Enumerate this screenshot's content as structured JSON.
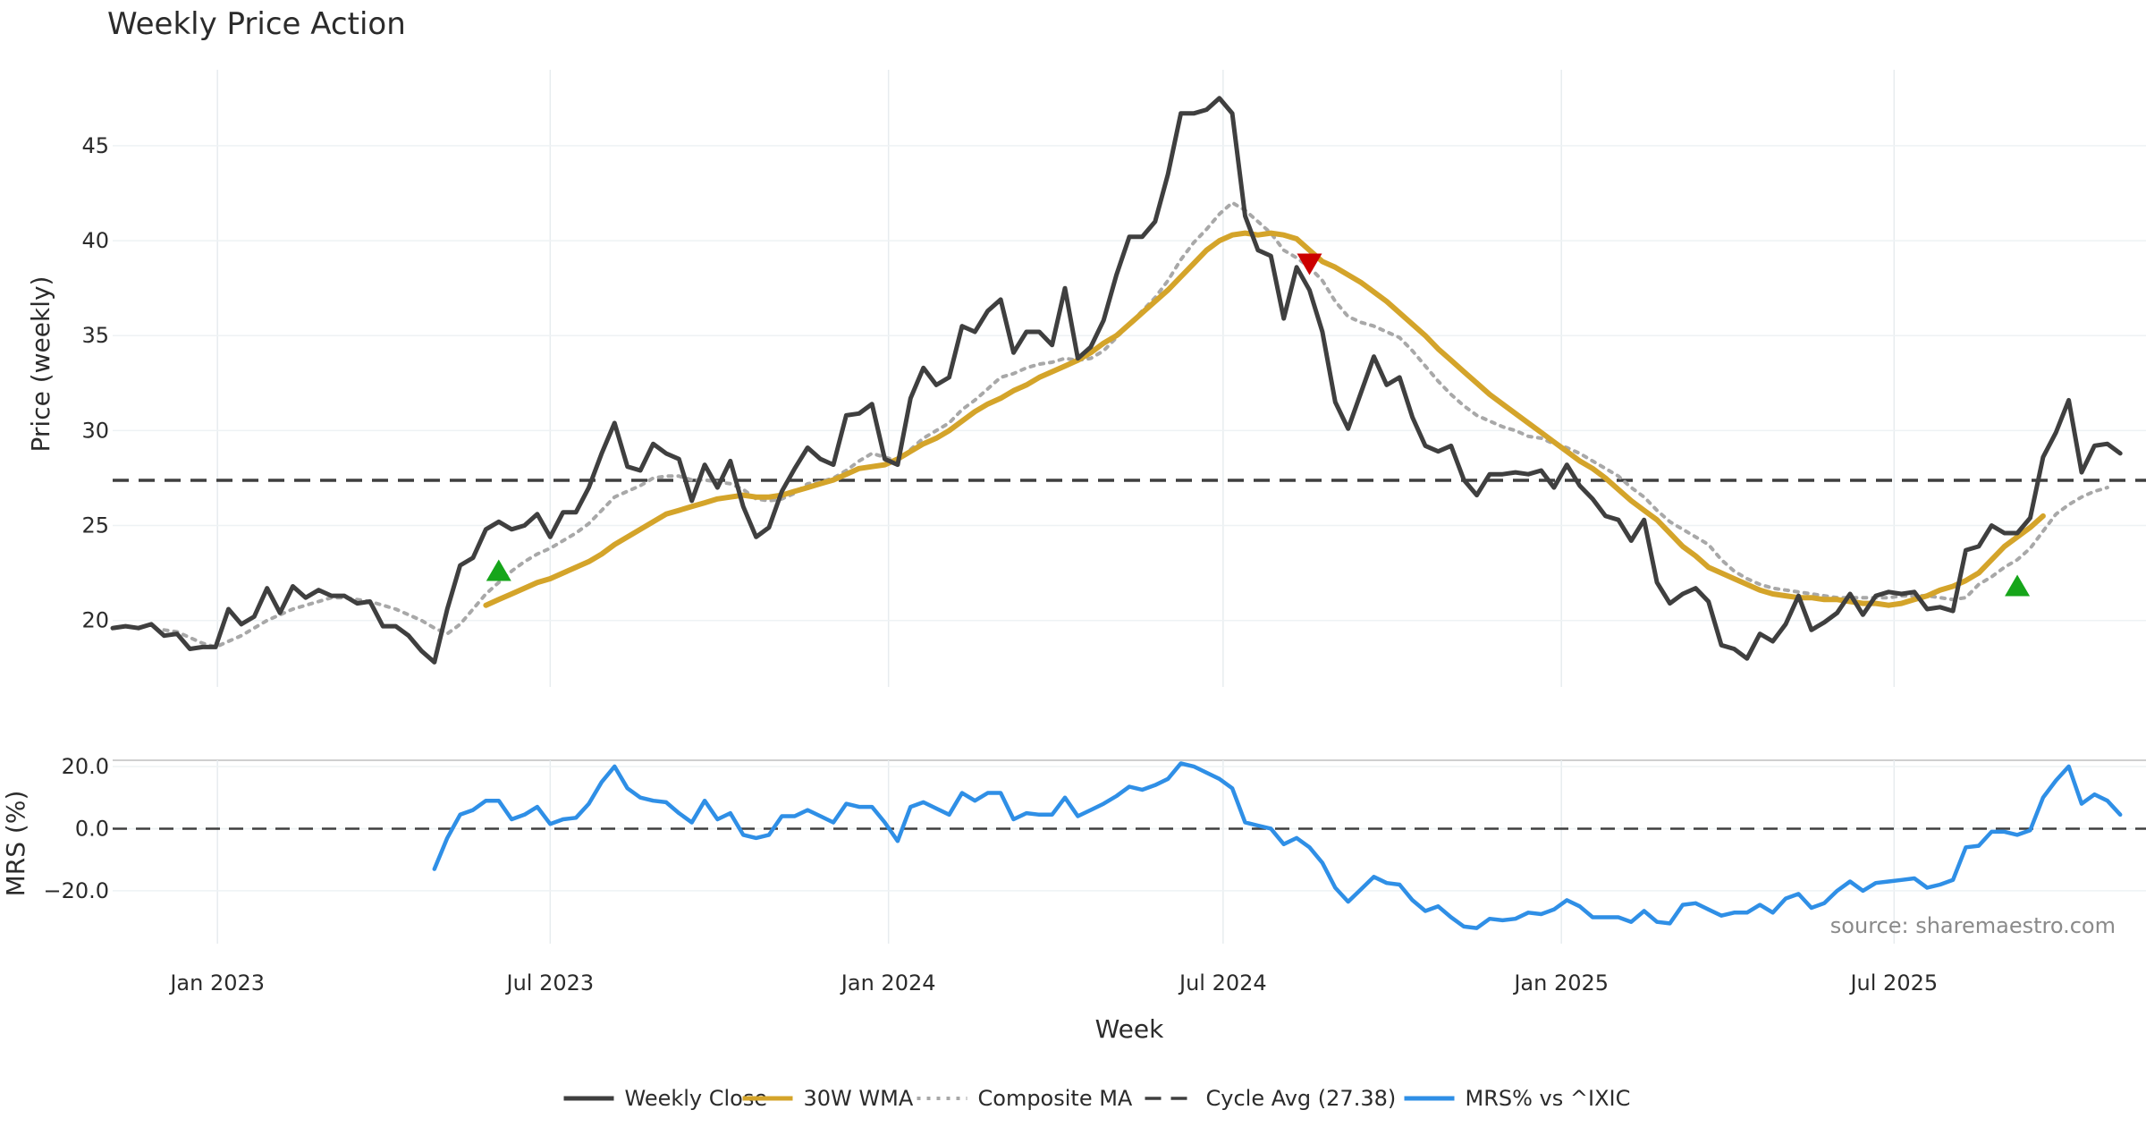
{
  "chart_data": [
    {
      "type": "line",
      "title": "Weekly Price Action",
      "ylabel": "Price (weekly)",
      "xlabel": "Week",
      "ylim": [
        16.5,
        49
      ],
      "yticks": [
        20,
        25,
        30,
        35,
        40,
        45
      ],
      "x_range": [
        "2022-11-05",
        "2025-11-15"
      ],
      "x_ticks": [
        {
          "label": "Jan 2023",
          "date": "2023-01-01"
        },
        {
          "label": "Jul 2023",
          "date": "2023-07-01"
        },
        {
          "label": "Jan 2024",
          "date": "2024-01-01"
        },
        {
          "label": "Jul 2024",
          "date": "2024-07-01"
        },
        {
          "label": "Jan 2025",
          "date": "2025-01-01"
        },
        {
          "label": "Jul 2025",
          "date": "2025-07-01"
        }
      ],
      "x_start": "2022-11-05",
      "x_step_days": 7,
      "cycle_avg": 27.38,
      "series": [
        {
          "name": "Weekly Close",
          "color": "#3f3f3f",
          "style": "solid",
          "values": [
            19.6,
            19.7,
            19.6,
            19.8,
            19.2,
            19.3,
            18.5,
            18.6,
            18.6,
            20.6,
            19.8,
            20.2,
            21.7,
            20.4,
            21.8,
            21.2,
            21.6,
            21.3,
            21.3,
            20.9,
            21.0,
            19.7,
            19.7,
            19.2,
            18.4,
            17.8,
            20.6,
            22.9,
            23.3,
            24.8,
            25.2,
            24.8,
            25.0,
            25.6,
            24.4,
            25.7,
            25.7,
            27.0,
            28.8,
            30.4,
            28.1,
            27.9,
            29.3,
            28.8,
            28.5,
            26.3,
            28.2,
            27.0,
            28.4,
            26.0,
            24.4,
            24.9,
            26.8,
            28.0,
            29.1,
            28.5,
            28.2,
            30.8,
            30.9,
            31.4,
            28.5,
            28.2,
            31.7,
            33.3,
            32.4,
            32.8,
            35.5,
            35.2,
            36.3,
            36.9,
            34.1,
            35.2,
            35.2,
            34.5,
            37.5,
            33.8,
            34.4,
            35.8,
            38.2,
            40.2,
            40.2,
            41.0,
            43.5,
            46.7,
            46.7,
            46.9,
            47.5,
            46.7,
            41.3,
            39.5,
            39.2,
            35.9,
            38.6,
            37.4,
            35.2,
            31.5,
            30.1,
            32.0,
            33.9,
            32.4,
            32.8,
            30.7,
            29.2,
            28.9,
            29.2,
            27.4,
            26.6,
            27.7,
            27.7,
            27.8,
            27.7,
            27.9,
            27.0,
            28.2,
            27.1,
            26.4,
            25.5,
            25.3,
            24.2,
            25.3,
            22.0,
            20.9,
            21.4,
            21.7,
            21.0,
            18.7,
            18.5,
            18.0,
            19.3,
            18.9,
            19.8,
            21.3,
            19.5,
            19.9,
            20.4,
            21.4,
            20.3,
            21.3,
            21.5,
            21.4,
            21.5,
            20.6,
            20.7,
            20.5,
            23.7,
            23.9,
            25.0,
            24.6,
            24.6,
            25.4,
            28.6,
            29.9,
            31.6,
            27.8,
            29.2,
            29.3,
            28.8
          ]
        },
        {
          "name": "30W WMA",
          "color": "#d4a42a",
          "style": "solid",
          "values": [
            null,
            null,
            null,
            null,
            null,
            null,
            null,
            null,
            null,
            null,
            null,
            null,
            null,
            null,
            null,
            null,
            null,
            null,
            null,
            null,
            null,
            null,
            null,
            null,
            null,
            null,
            null,
            null,
            null,
            20.8,
            21.1,
            21.4,
            21.7,
            22.0,
            22.2,
            22.5,
            22.8,
            23.1,
            23.5,
            24.0,
            24.4,
            24.8,
            25.2,
            25.6,
            25.8,
            26.0,
            26.2,
            26.4,
            26.5,
            26.6,
            26.5,
            26.5,
            26.6,
            26.8,
            27.0,
            27.2,
            27.4,
            27.7,
            28.0,
            28.1,
            28.2,
            28.5,
            28.9,
            29.3,
            29.6,
            30.0,
            30.5,
            31.0,
            31.4,
            31.7,
            32.1,
            32.4,
            32.8,
            33.1,
            33.4,
            33.7,
            34.1,
            34.6,
            35.0,
            35.6,
            36.2,
            36.8,
            37.4,
            38.1,
            38.8,
            39.5,
            40.0,
            40.3,
            40.4,
            40.3,
            40.4,
            40.3,
            40.1,
            39.5,
            38.9,
            38.6,
            38.2,
            37.8,
            37.3,
            36.8,
            36.2,
            35.6,
            35.0,
            34.3,
            33.7,
            33.1,
            32.5,
            31.9,
            31.4,
            30.9,
            30.4,
            29.9,
            29.4,
            28.9,
            28.4,
            28.0,
            27.5,
            26.9,
            26.3,
            25.8,
            25.3,
            24.6,
            23.9,
            23.4,
            22.8,
            22.5,
            22.2,
            21.9,
            21.6,
            21.4,
            21.3,
            21.2,
            21.2,
            21.1,
            21.1,
            21.0,
            20.9,
            20.9,
            20.8,
            20.9,
            21.1,
            21.3,
            21.6,
            21.8,
            22.1,
            22.5,
            23.2,
            23.9,
            24.4,
            24.9,
            25.5
          ]
        },
        {
          "name": "Composite MA",
          "color": "#a8a8a8",
          "style": "dotted",
          "values": [
            null,
            null,
            null,
            null,
            19.5,
            19.4,
            19.1,
            18.8,
            18.6,
            18.9,
            19.2,
            19.6,
            20.0,
            20.3,
            20.6,
            20.8,
            21.0,
            21.2,
            21.2,
            21.1,
            21.0,
            20.8,
            20.6,
            20.3,
            20.0,
            19.6,
            19.3,
            19.8,
            20.6,
            21.4,
            22.0,
            22.6,
            23.1,
            23.5,
            23.8,
            24.2,
            24.6,
            25.1,
            25.8,
            26.5,
            26.8,
            27.1,
            27.5,
            27.6,
            27.6,
            27.4,
            27.4,
            27.3,
            27.2,
            26.9,
            26.4,
            26.3,
            26.4,
            26.7,
            27.2,
            27.3,
            27.5,
            27.9,
            28.4,
            28.8,
            28.6,
            28.4,
            29.0,
            29.6,
            30.0,
            30.4,
            31.1,
            31.6,
            32.2,
            32.8,
            33.0,
            33.3,
            33.5,
            33.6,
            33.8,
            33.7,
            33.8,
            34.2,
            34.9,
            35.6,
            36.3,
            37.0,
            37.9,
            39.0,
            39.9,
            40.6,
            41.4,
            42.0,
            41.6,
            41.0,
            40.4,
            39.5,
            39.1,
            38.6,
            37.9,
            36.8,
            36.0,
            35.7,
            35.5,
            35.2,
            34.9,
            34.2,
            33.4,
            32.6,
            31.9,
            31.3,
            30.8,
            30.5,
            30.2,
            30.0,
            29.7,
            29.6,
            29.3,
            29.1,
            28.8,
            28.4,
            28.0,
            27.6,
            27.0,
            26.5,
            25.8,
            25.2,
            24.8,
            24.4,
            24.0,
            23.2,
            22.6,
            22.2,
            21.9,
            21.7,
            21.6,
            21.5,
            21.4,
            21.3,
            21.2,
            21.2,
            21.2,
            21.2,
            21.2,
            21.3,
            21.3,
            21.3,
            21.2,
            21.1,
            21.2,
            21.9,
            22.3,
            22.8,
            23.2,
            23.8,
            24.7,
            25.6,
            26.1,
            26.5,
            26.8,
            27.0
          ]
        }
      ],
      "markers": [
        {
          "type": "buy",
          "symbol": "triangle-up",
          "color": "#16a51a",
          "index": 30,
          "value": 22.6
        },
        {
          "type": "sell",
          "symbol": "triangle-down",
          "color": "#cc0000",
          "index": 93,
          "value": 38.8
        },
        {
          "type": "buy",
          "symbol": "triangle-up",
          "color": "#16a51a",
          "index": 148,
          "value": 21.8
        }
      ]
    },
    {
      "type": "line",
      "ylabel": "MRS (%)",
      "ylim": [
        -37,
        22
      ],
      "yticks": [
        -20,
        0,
        20
      ],
      "ytick_labels": [
        "−20.0",
        "0.0",
        "20.0"
      ],
      "series": [
        {
          "name": "MRS% vs ^IXIC",
          "color": "#2f8fe6",
          "style": "solid",
          "values": [
            null,
            null,
            null,
            null,
            null,
            null,
            null,
            null,
            null,
            null,
            null,
            null,
            null,
            null,
            null,
            null,
            null,
            null,
            null,
            null,
            null,
            null,
            null,
            null,
            null,
            -13,
            -3,
            4.5,
            6,
            9,
            9,
            3,
            4.5,
            7,
            1.5,
            3,
            3.5,
            8,
            15,
            20,
            13,
            10,
            9,
            8.5,
            5,
            2,
            9,
            3,
            5,
            -2,
            -3,
            -2,
            4,
            4,
            6,
            4,
            2,
            8,
            7,
            7,
            2,
            -4,
            7,
            8.5,
            6.5,
            4.5,
            11.5,
            9,
            11.5,
            11.5,
            3,
            5,
            4.5,
            4.5,
            10,
            4,
            6,
            8,
            10.5,
            13.5,
            12.5,
            14,
            16,
            21,
            20,
            18,
            16,
            13,
            2,
            1,
            0,
            -5,
            -3,
            -6,
            -11,
            -19,
            -23.5,
            -19.5,
            -15.5,
            -17.5,
            -18,
            -23,
            -26.5,
            -25,
            -28.5,
            -31.5,
            -32,
            -29,
            -29.5,
            -29,
            -27,
            -27.5,
            -26,
            -23,
            -25,
            -28.5,
            -28.5,
            -28.5,
            -30,
            -26.5,
            -30,
            -30.5,
            -24.5,
            -24,
            -26,
            -28,
            -27,
            -27,
            -24.5,
            -27,
            -22.5,
            -21,
            -25.5,
            -24,
            -20,
            -17,
            -20,
            -17.5,
            -17,
            -16.5,
            -16,
            -19,
            -18,
            -16.5,
            -6,
            -5.5,
            -1,
            -1,
            -2,
            -0.5,
            10,
            15.5,
            20,
            8,
            11,
            9,
            4.5
          ]
        }
      ],
      "zero_line": 0
    }
  ],
  "legend": {
    "placement": "bottom-center",
    "entries": [
      {
        "label": "Weekly Close",
        "color": "#3f3f3f",
        "style": "solid"
      },
      {
        "label": "30W WMA",
        "color": "#d4a42a",
        "style": "solid"
      },
      {
        "label": "Composite MA",
        "color": "#a8a8a8",
        "style": "dotted"
      },
      {
        "label": "Cycle Avg (27.38)",
        "color": "#3f3f3f",
        "style": "dashed"
      },
      {
        "label": "MRS% vs ^IXIC",
        "color": "#2f8fe6",
        "style": "solid"
      }
    ]
  },
  "source_note": "source: sharemaestro.com"
}
